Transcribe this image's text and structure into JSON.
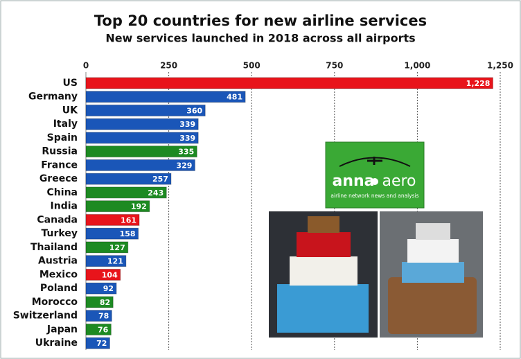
{
  "chart_data": {
    "type": "hbar",
    "title": "Top 20 countries for new airline services",
    "subtitle": "New services launched in 2018 across all airports",
    "categories": [
      "US",
      "Germany",
      "UK",
      "Italy",
      "Spain",
      "Russia",
      "France",
      "Greece",
      "China",
      "India",
      "Canada",
      "Turkey",
      "Thailand",
      "Austria",
      "Mexico",
      "Poland",
      "Morocco",
      "Switzerland",
      "Japan",
      "Ukraine"
    ],
    "values": [
      1228,
      481,
      360,
      339,
      339,
      335,
      329,
      257,
      243,
      192,
      161,
      158,
      127,
      121,
      104,
      92,
      82,
      78,
      76,
      72
    ],
    "value_labels": [
      "1,228",
      "481",
      "360",
      "339",
      "339",
      "335",
      "329",
      "257",
      "243",
      "192",
      "161",
      "158",
      "127",
      "121",
      "104",
      "92",
      "82",
      "78",
      "76",
      "72"
    ],
    "colors": [
      "#e8141b",
      "#1a56b8",
      "#1a56b8",
      "#1a56b8",
      "#1a56b8",
      "#1d8a22",
      "#1a56b8",
      "#1a56b8",
      "#1d8a22",
      "#1d8a22",
      "#e8141b",
      "#1a56b8",
      "#1d8a22",
      "#1a56b8",
      "#e8141b",
      "#1a56b8",
      "#1d8a22",
      "#1a56b8",
      "#1d8a22",
      "#1a56b8"
    ],
    "xlim": [
      0,
      1250
    ],
    "xticks": [
      0,
      250,
      500,
      750,
      {
        "value": 1000,
        "label": "1,000"
      },
      {
        "value": 1250,
        "label": "1,250"
      }
    ],
    "grid": true
  },
  "logo": {
    "name_left": "anna",
    "name_right": "aero",
    "tagline": "airline network news and analysis"
  }
}
